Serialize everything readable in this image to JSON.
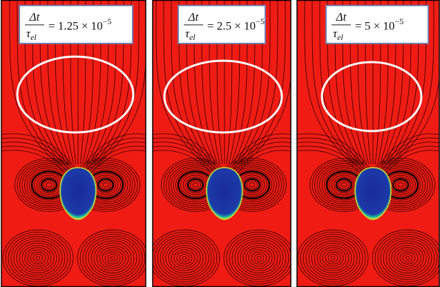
{
  "panels": [
    {
      "numerator": "Δt",
      "denominator": "τ",
      "denominator_sub": "el",
      "equals": "= 1.25 × 10",
      "exponent": "−5"
    },
    {
      "numerator": "Δt",
      "denominator": "τ",
      "denominator_sub": "el",
      "equals": "= 2.5 × 10",
      "exponent": "−5"
    },
    {
      "numerator": "Δt",
      "denominator": "τ",
      "denominator_sub": "el",
      "equals": "= 5 × 10",
      "exponent": "−5"
    }
  ]
}
